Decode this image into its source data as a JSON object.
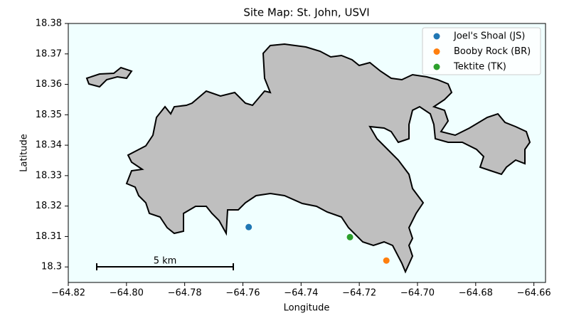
{
  "chart_data": {
    "type": "scatter",
    "title": "Site Map: St. John, USVI",
    "x_label": "Longitude",
    "y_label": "Latitude",
    "xlim": [
      -64.82,
      -64.656
    ],
    "ylim": [
      18.2949,
      18.38
    ],
    "xticks": [
      {
        "value": -64.82,
        "label": "−64.82"
      },
      {
        "value": -64.8,
        "label": "−64.80"
      },
      {
        "value": -64.78,
        "label": "−64.78"
      },
      {
        "value": -64.76,
        "label": "−64.76"
      },
      {
        "value": -64.74,
        "label": "−64.74"
      },
      {
        "value": -64.72,
        "label": "−64.72"
      },
      {
        "value": -64.7,
        "label": "−64.70"
      },
      {
        "value": -64.68,
        "label": "−64.68"
      },
      {
        "value": -64.66,
        "label": "−64.66"
      }
    ],
    "yticks": [
      18.3,
      18.31,
      18.32,
      18.33,
      18.34,
      18.35,
      18.36,
      18.37,
      18.38
    ],
    "series": [
      {
        "name": "Joel's Shoal (JS)",
        "color": "#1f77b4",
        "x": [
          -64.758
        ],
        "y": [
          18.3131
        ]
      },
      {
        "name": "Booby Rock (BR)",
        "color": "#ff7f0e",
        "x": [
          -64.7107
        ],
        "y": [
          18.3021
        ]
      },
      {
        "name": "Tektite (TK)",
        "color": "#2ca02c",
        "x": [
          -64.7232
        ],
        "y": [
          18.3098
        ]
      }
    ],
    "annotations": [
      "5 km"
    ],
    "legend": "upper right",
    "background": "#f0ffff"
  }
}
